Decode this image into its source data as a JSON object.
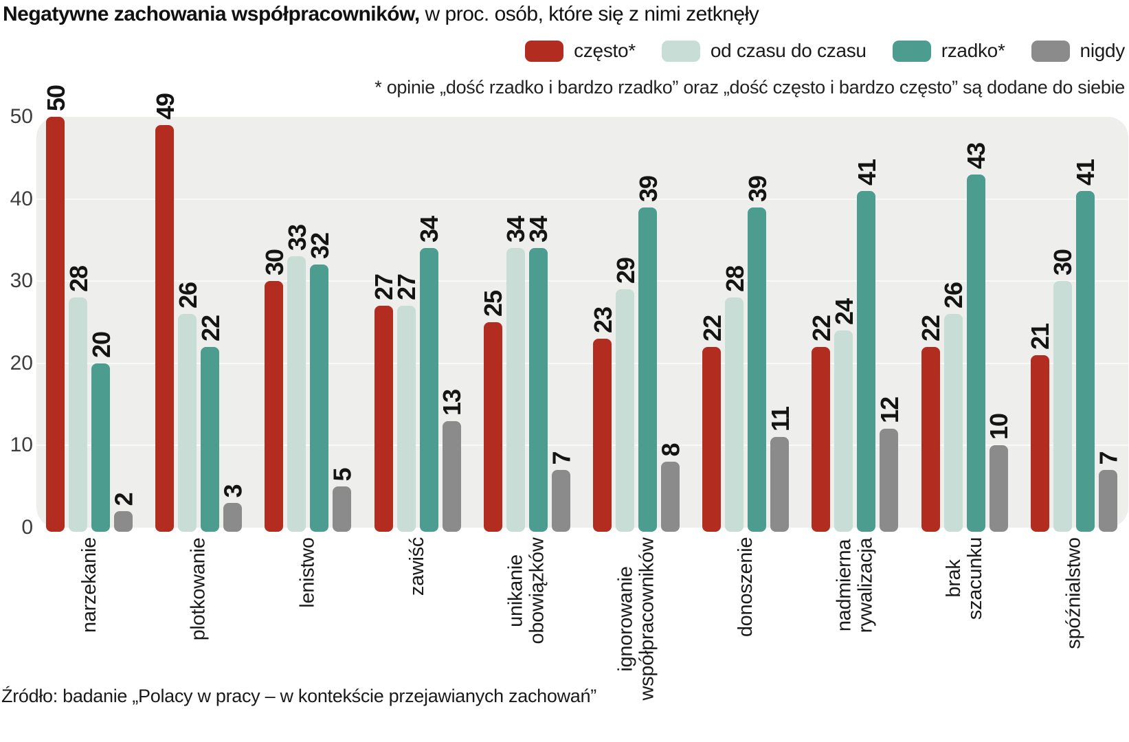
{
  "title": {
    "bold": "Negatywne zachowania współpracowników,",
    "rest": " w proc. osób, które się z nimi zetknęły"
  },
  "legend": [
    {
      "label": "często*",
      "color": "#b22d1f"
    },
    {
      "label": "od czasu do czasu",
      "color": "#c7ddd6"
    },
    {
      "label": "rzadko*",
      "color": "#4c9c90"
    },
    {
      "label": "nigdy",
      "color": "#8b8b8b"
    }
  ],
  "footnote": "* opinie „dość rzadko i bardzo rzadko” oraz „dość często i bardzo często” są dodane do siebie",
  "source": "Źródło: badanie „Polacy w pracy – w kontekście przejawianych zachowań”",
  "y_axis": {
    "ticks": [
      50,
      40,
      30,
      20,
      10,
      0
    ]
  },
  "chart_data": {
    "type": "bar",
    "title": "Negatywne zachowania współpracowników, w proc. osób, które się z nimi zetknęły",
    "xlabel": "",
    "ylabel": "proc. osób, które się z nimi zetknęły",
    "ylim": [
      0,
      50
    ],
    "grid": true,
    "legend_position": "top",
    "categories": [
      "narzekanie",
      "plotkowanie",
      "lenistwo",
      "zawiść",
      "unikanie\nobowiązków",
      "ignorowanie\nwspółpracowników",
      "donoszenie",
      "nadmierna\nrywalizacja",
      "brak\nszacunku",
      "spóźnialstwo"
    ],
    "series": [
      {
        "name": "często*",
        "color": "#b22d1f",
        "values": [
          50,
          49,
          30,
          27,
          25,
          23,
          22,
          22,
          22,
          21
        ]
      },
      {
        "name": "od czasu do czasu",
        "color": "#c7ddd6",
        "values": [
          28,
          26,
          33,
          27,
          34,
          29,
          28,
          24,
          26,
          30
        ]
      },
      {
        "name": "rzadko*",
        "color": "#4c9c90",
        "values": [
          20,
          22,
          32,
          34,
          34,
          39,
          39,
          41,
          43,
          41
        ]
      },
      {
        "name": "nigdy",
        "color": "#8b8b8b",
        "values": [
          2,
          3,
          5,
          13,
          7,
          8,
          11,
          12,
          10,
          7
        ]
      }
    ]
  },
  "colors": {
    "plot_background": "#eeeeec",
    "gridline": "#f9f9f7",
    "page_background": "#ffffff",
    "text": "#1a1a1a"
  }
}
